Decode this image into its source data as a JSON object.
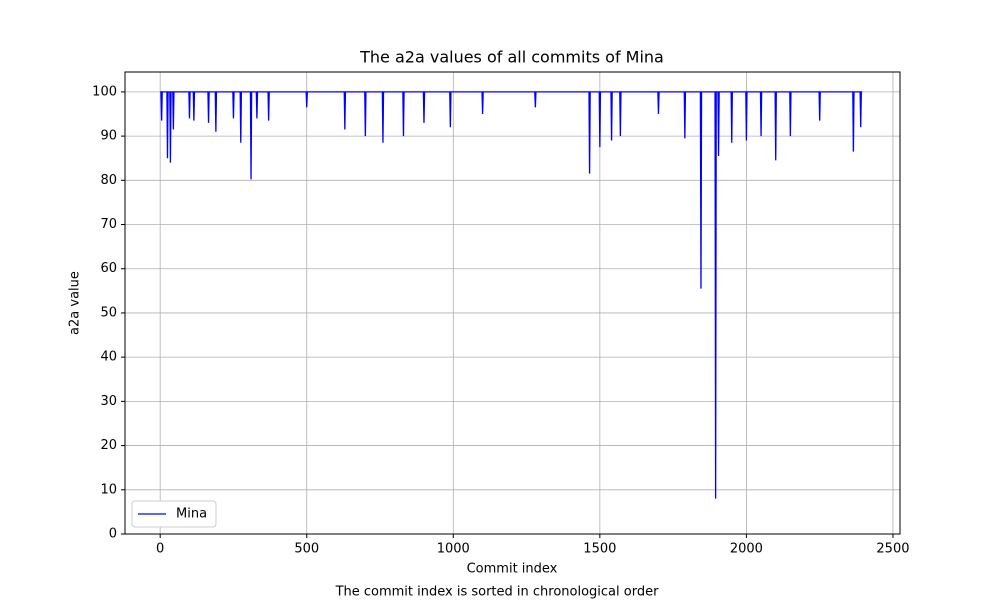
{
  "chart_data": {
    "type": "line",
    "title": "The a2a values of all commits of Mina",
    "xlabel": "Commit index",
    "ylabel": "a2a value",
    "caption": "The commit index is sorted in chronological order",
    "xlim": [
      -120,
      2524
    ],
    "ylim": [
      0,
      104.5
    ],
    "xticks": [
      0,
      500,
      1000,
      1500,
      2000,
      2500
    ],
    "yticks": [
      0,
      10,
      20,
      30,
      40,
      50,
      60,
      70,
      80,
      90,
      100
    ],
    "grid": true,
    "legend": "lower left",
    "x": [
      0,
      3,
      5,
      7,
      23,
      25,
      27,
      33,
      35,
      37,
      43,
      45,
      47,
      98,
      100,
      102,
      113,
      115,
      117,
      163,
      165,
      167,
      188,
      190,
      192,
      248,
      250,
      252,
      273,
      275,
      277,
      308,
      310,
      312,
      328,
      330,
      332,
      368,
      370,
      372,
      498,
      500,
      502,
      628,
      630,
      632,
      698,
      700,
      702,
      758,
      760,
      762,
      828,
      830,
      832,
      898,
      900,
      902,
      988,
      990,
      992,
      1098,
      1100,
      1102,
      1278,
      1280,
      1282,
      1463,
      1465,
      1467,
      1498,
      1500,
      1502,
      1538,
      1540,
      1542,
      1568,
      1570,
      1572,
      1698,
      1700,
      1702,
      1788,
      1790,
      1792,
      1843,
      1845,
      1847,
      1893,
      1895,
      1897,
      1903,
      1905,
      1907,
      1948,
      1950,
      1952,
      1998,
      2000,
      2002,
      2048,
      2050,
      2052,
      2098,
      2100,
      2102,
      2148,
      2150,
      2152,
      2248,
      2250,
      2252,
      2363,
      2365,
      2367,
      2388,
      2390,
      2392,
      2395
    ],
    "series": [
      {
        "name": "Mina",
        "color": "#0000ff",
        "values": [
          100,
          100,
          93.5,
          100,
          100,
          85,
          100,
          100,
          84,
          100,
          100,
          91.5,
          100,
          100,
          94,
          100,
          100,
          93.5,
          100,
          100,
          93,
          100,
          100,
          91,
          100,
          100,
          94,
          100,
          100,
          88.5,
          100,
          100,
          80.2,
          100,
          100,
          94,
          100,
          100,
          93.5,
          100,
          100,
          96.5,
          100,
          100,
          91.5,
          100,
          100,
          90,
          100,
          100,
          88.5,
          100,
          100,
          90,
          100,
          100,
          93,
          100,
          100,
          92,
          100,
          100,
          95,
          100,
          100,
          96.5,
          100,
          100,
          81.5,
          100,
          100,
          87.5,
          100,
          100,
          89,
          100,
          100,
          90,
          100,
          100,
          95,
          100,
          100,
          89.5,
          100,
          100,
          55.5,
          100,
          100,
          8,
          100,
          100,
          85.5,
          100,
          100,
          88.5,
          100,
          100,
          89,
          100,
          100,
          90,
          100,
          100,
          84.5,
          100,
          100,
          90,
          100,
          100,
          93.5,
          100,
          100,
          86.5,
          100,
          100,
          92,
          100,
          100
        ]
      }
    ]
  }
}
